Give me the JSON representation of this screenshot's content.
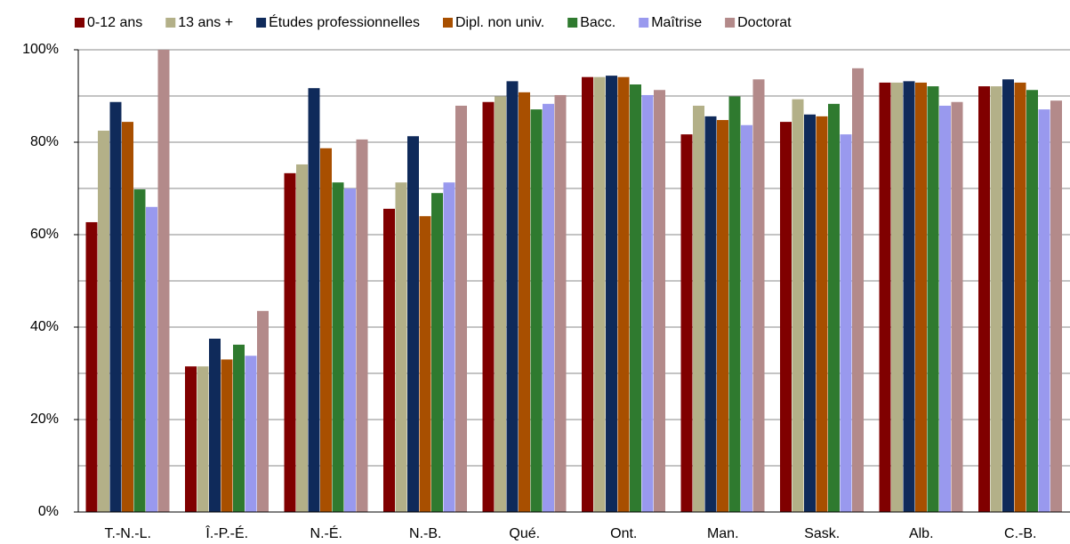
{
  "chart_data": {
    "type": "bar",
    "categories": [
      "T.-N.-L.",
      "Î.-P.-É.",
      "N.-É.",
      "N.-B.",
      "Qué.",
      "Ont.",
      "Man.",
      "Sask.",
      "Alb.",
      "C.-B."
    ],
    "series": [
      {
        "name": "0-12 ans",
        "color": "#800000",
        "values": [
          62.7,
          31.5,
          73.3,
          65.6,
          88.7,
          94.1,
          81.7,
          84.4,
          92.9,
          92.1
        ]
      },
      {
        "name": "13 ans +",
        "color": "#b3b088",
        "values": [
          82.5,
          31.5,
          75.2,
          71.3,
          89.9,
          94.1,
          87.9,
          89.3,
          92.9,
          92.1
        ]
      },
      {
        "name": "Études professionnelles",
        "color": "#0f2a5a",
        "values": [
          88.7,
          37.5,
          91.7,
          81.3,
          93.2,
          94.4,
          85.6,
          86.0,
          93.2,
          93.6
        ]
      },
      {
        "name": "Dipl. non univ.",
        "color": "#a84f00",
        "values": [
          84.4,
          33.0,
          78.7,
          64.0,
          90.8,
          94.1,
          84.8,
          85.6,
          92.9,
          92.9
        ]
      },
      {
        "name": "Bacc.",
        "color": "#2f7a2f",
        "values": [
          69.8,
          36.2,
          71.3,
          69.0,
          87.1,
          92.5,
          89.9,
          88.3,
          92.1,
          91.3
        ]
      },
      {
        "name": "Maîtrise",
        "color": "#9999ee",
        "values": [
          66.0,
          33.8,
          70.0,
          71.3,
          88.3,
          90.2,
          83.7,
          81.7,
          87.9,
          87.1
        ]
      },
      {
        "name": "Doctorat",
        "color": "#b38a8a",
        "values": [
          100,
          43.5,
          80.6,
          87.9,
          90.2,
          91.3,
          93.6,
          96.0,
          88.7,
          89.0
        ]
      }
    ],
    "ylim": [
      0,
      100
    ],
    "yticks": [
      {
        "value": 0,
        "label": "0%"
      },
      {
        "value": 20,
        "label": "20%"
      },
      {
        "value": 40,
        "label": "40%"
      },
      {
        "value": 60,
        "label": "60%"
      },
      {
        "value": 80,
        "label": "80%"
      },
      {
        "value": 100,
        "label": "100%"
      }
    ],
    "minor_yticks": [
      10,
      30,
      50,
      70,
      90
    ],
    "grid": true,
    "legend": "top"
  }
}
